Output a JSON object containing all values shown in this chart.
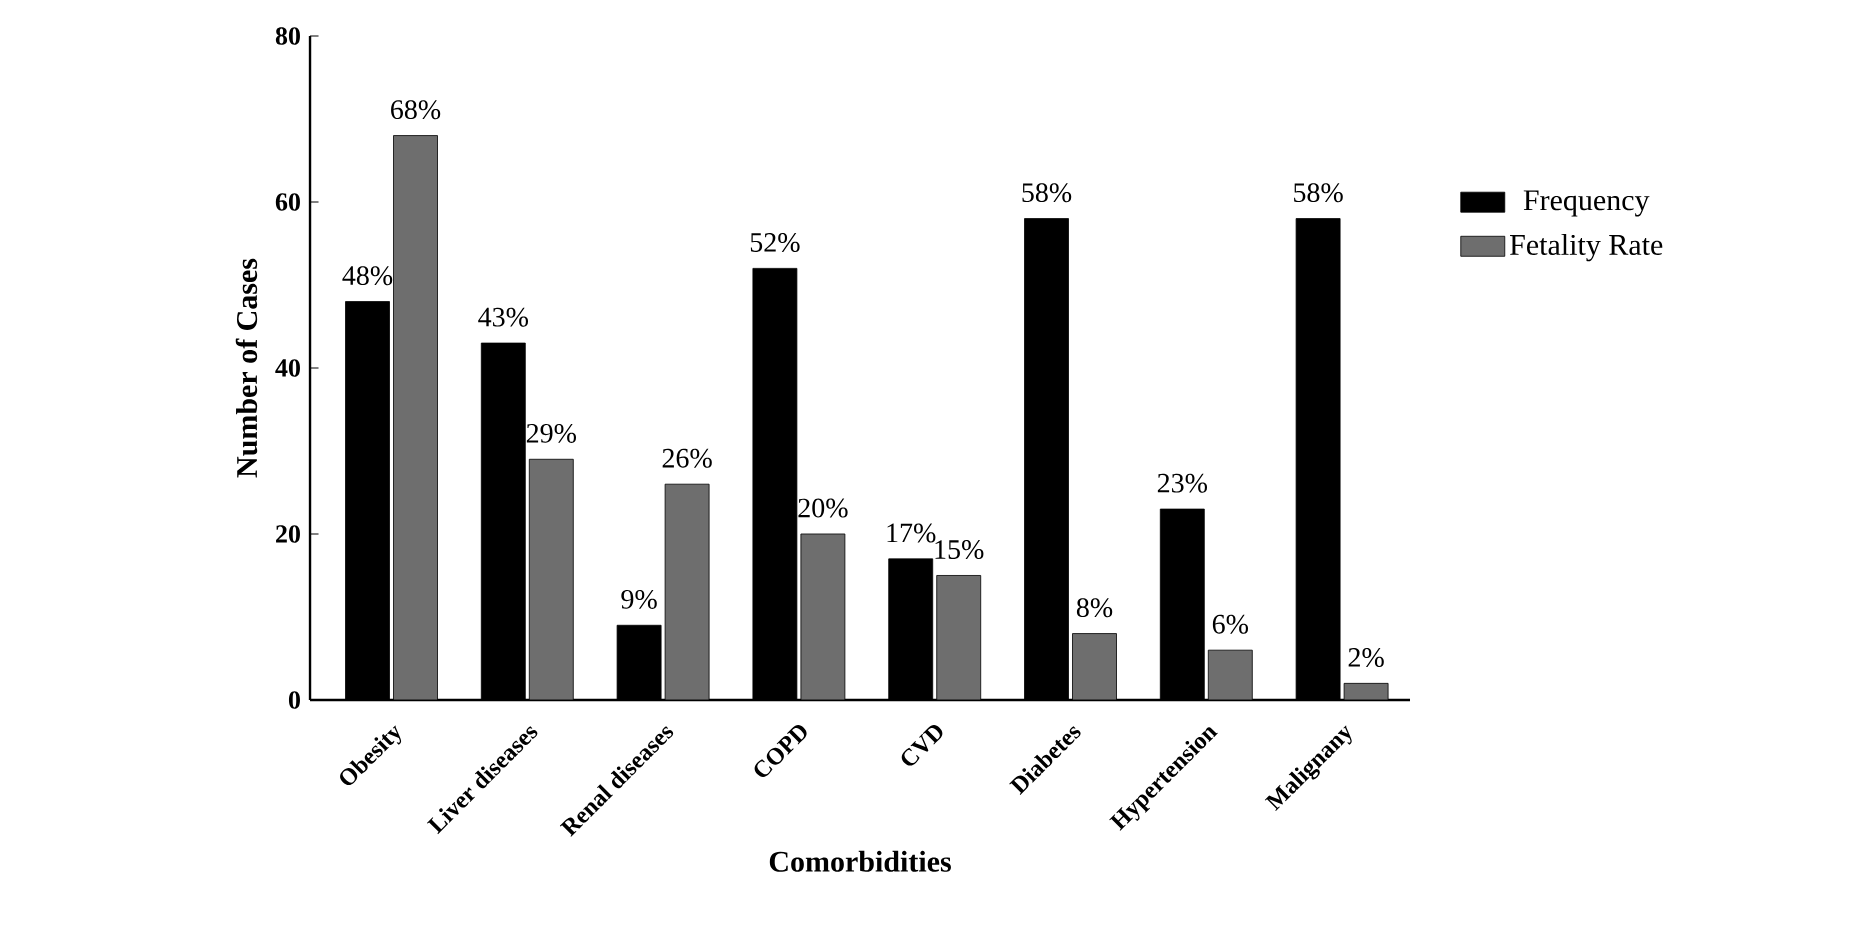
{
  "chart_data": {
    "type": "bar",
    "xlabel": "Comorbidities",
    "ylabel": "Number of Cases",
    "categories": [
      "Obesity",
      "Liver diseases",
      "Renal diseases",
      "COPD",
      "CVD",
      "Diabetes",
      "Hypertension",
      "Malignany"
    ],
    "series": [
      {
        "name": "Frequency",
        "color": "#000000",
        "values": [
          48,
          43,
          9,
          52,
          17,
          58,
          23,
          58
        ],
        "value_labels": [
          "48%",
          "43%",
          "9%",
          "52%",
          "17%",
          "58%",
          "23%",
          "58%"
        ]
      },
      {
        "name": "Fetality Rate",
        "color": "#6e6e6e",
        "values": [
          68,
          29,
          26,
          20,
          15,
          8,
          6,
          2
        ],
        "value_labels": [
          "68%",
          "29%",
          "26%",
          "20%",
          "15%",
          "8%",
          "6%",
          "2%"
        ]
      }
    ],
    "ylim": [
      0,
      80
    ],
    "yticks": [
      0,
      20,
      40,
      60,
      80
    ],
    "legend": "right",
    "grid": false
  }
}
